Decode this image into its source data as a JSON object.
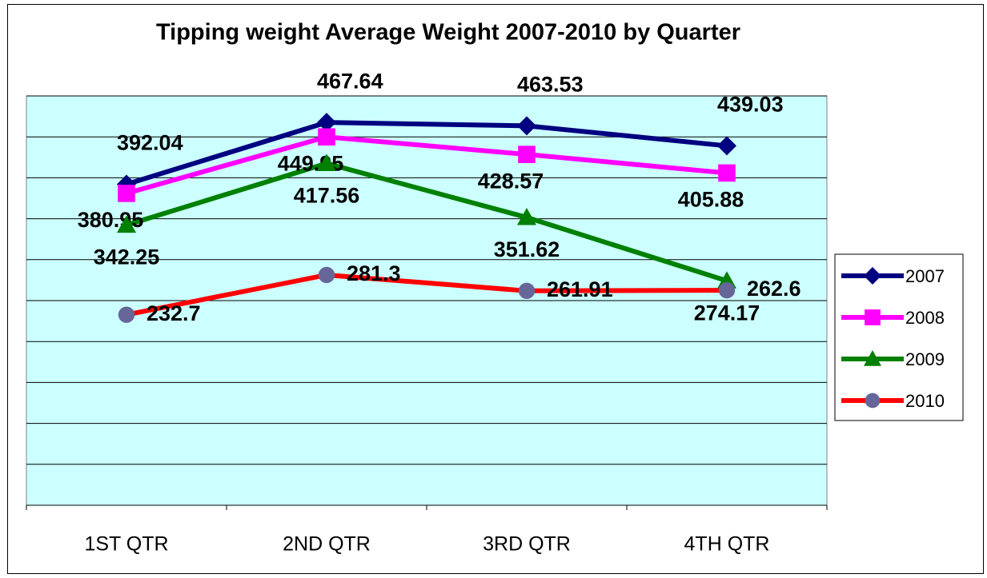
{
  "chart_data": {
    "type": "line",
    "title": "Tipping weight Average Weight 2007-2010 by Quarter",
    "categories": [
      "1ST QTR",
      "2ND QTR",
      "3RD QTR",
      "4TH QTR"
    ],
    "series": [
      {
        "name": "2007",
        "color": "#000080",
        "marker": "diamond",
        "marker_color": "#000080",
        "values": [
          392.04,
          467.64,
          463.53,
          439.03
        ]
      },
      {
        "name": "2008",
        "color": "#ff00ff",
        "marker": "square",
        "marker_color": "#ff00ff",
        "values": [
          380.95,
          449.95,
          428.57,
          405.88
        ]
      },
      {
        "name": "2009",
        "color": "#008000",
        "marker": "triangle",
        "marker_color": "#008000",
        "values": [
          342.25,
          417.56,
          351.62,
          274.17
        ]
      },
      {
        "name": "2010",
        "color": "#ff0000",
        "marker": "circle",
        "marker_color": "#666699",
        "values": [
          232.7,
          281.3,
          261.91,
          262.6
        ]
      }
    ],
    "ylim": [
      0,
      500
    ],
    "yticks": [
      0,
      50,
      100,
      150,
      200,
      250,
      300,
      350,
      400,
      450,
      500
    ],
    "grid": true,
    "legend": "right",
    "plot_background": "#ccffff"
  }
}
